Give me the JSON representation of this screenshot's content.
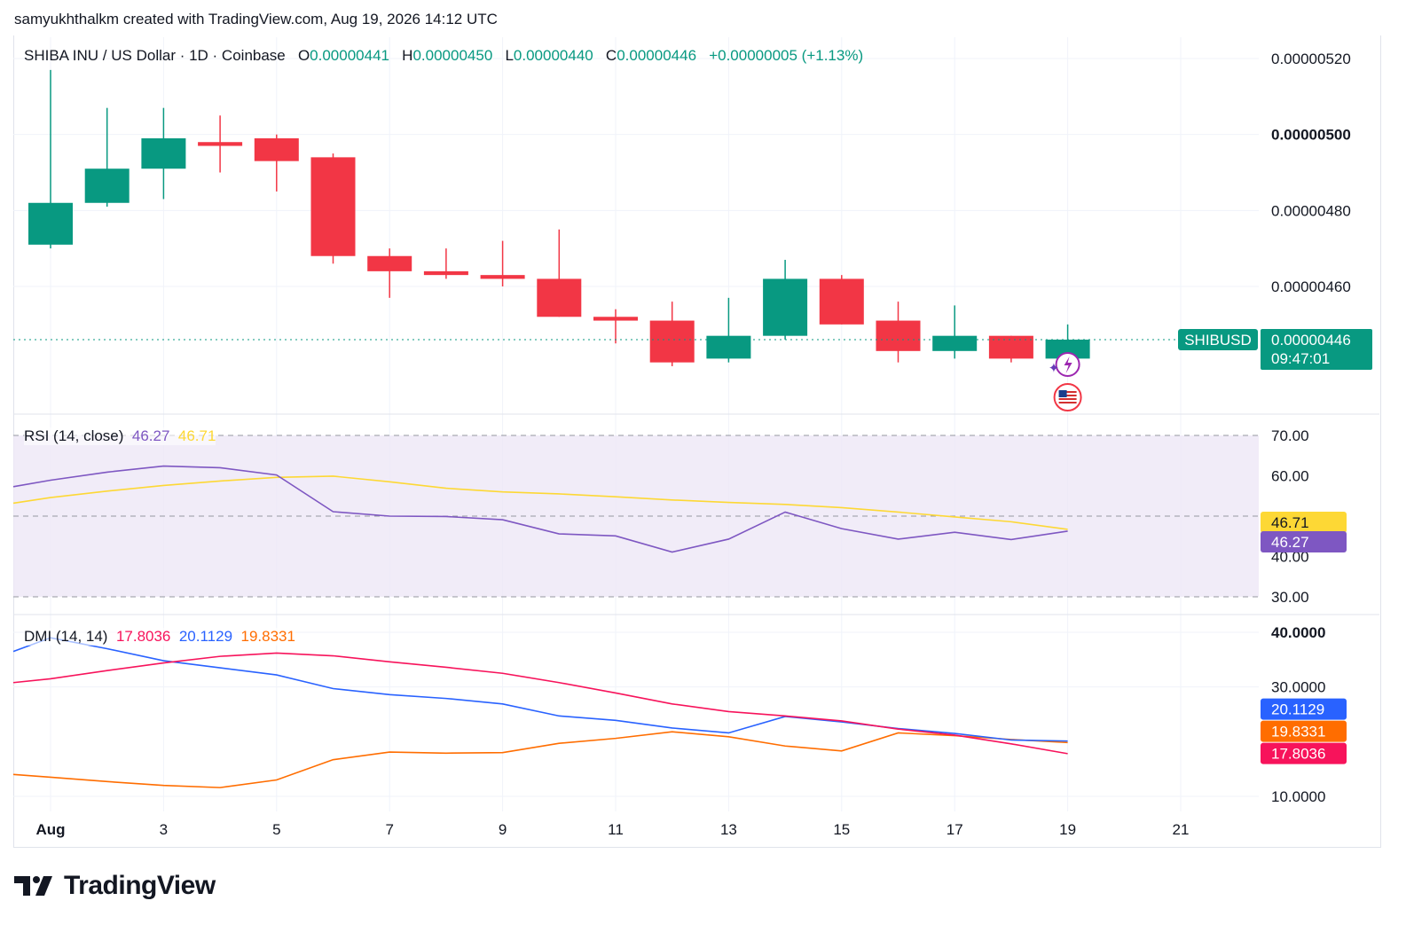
{
  "credit": "samyukhthalkm created with TradingView.com, Aug 19, 2026 14:12 UTC",
  "logo_text": "TradingView",
  "colors": {
    "up": "#089981",
    "down": "#f23645",
    "rsi": "#7e57c2",
    "rsi_ma": "#fdd835",
    "di_plus": "#2962ff",
    "di_minus": "#ff6d00",
    "adx": "#f7135b",
    "rsi_band": "#ede7f6"
  },
  "main_legend": {
    "symbol": "SHIBA INU / US Dollar · 1D · Coinbase",
    "o_label": "O",
    "o": "0.00000441",
    "h_label": "H",
    "h": "0.00000450",
    "l_label": "L",
    "l": "0.00000440",
    "c_label": "C",
    "c": "0.00000446",
    "change": "+0.00000005 (+1.13%)"
  },
  "rsi_legend": {
    "name": "RSI (14, close)",
    "value": "46.27",
    "ma": "46.71"
  },
  "dmi_legend": {
    "name": "DMI (14, 14)",
    "adx": "17.8036",
    "di_plus": "20.1129",
    "di_minus": "19.8331"
  },
  "price_tag": {
    "symbol": "SHIBUSD",
    "price": "0.00000446",
    "countdown": "09:47:01"
  },
  "chart_data": [
    {
      "type": "candlestick",
      "title": "SHIBA INU / US Dollar · 1D · Coinbase",
      "x": [
        "Aug 1",
        "Aug 2",
        "Aug 3",
        "Aug 4",
        "Aug 5",
        "Aug 6",
        "Aug 7",
        "Aug 8",
        "Aug 9",
        "Aug 10",
        "Aug 11",
        "Aug 12",
        "Aug 13",
        "Aug 14",
        "Aug 15",
        "Aug 16",
        "Aug 17",
        "Aug 18",
        "Aug 19"
      ],
      "open": [
        4.71,
        4.82,
        4.91,
        4.98,
        4.99,
        4.94,
        4.68,
        4.64,
        4.63,
        4.62,
        4.52,
        4.51,
        4.41,
        4.47,
        4.62,
        4.51,
        4.43,
        4.47,
        4.41
      ],
      "high": [
        5.17,
        5.07,
        5.07,
        5.05,
        5.0,
        4.95,
        4.7,
        4.7,
        4.72,
        4.75,
        4.54,
        4.56,
        4.57,
        4.67,
        4.63,
        4.56,
        4.55,
        4.47,
        4.5
      ],
      "low": [
        4.7,
        4.81,
        4.83,
        4.9,
        4.85,
        4.66,
        4.57,
        4.62,
        4.6,
        4.52,
        4.45,
        4.39,
        4.4,
        4.46,
        4.5,
        4.4,
        4.41,
        4.4,
        4.4
      ],
      "close": [
        4.82,
        4.91,
        4.99,
        4.97,
        4.93,
        4.68,
        4.64,
        4.63,
        4.62,
        4.52,
        4.51,
        4.4,
        4.47,
        4.62,
        4.5,
        4.43,
        4.47,
        4.41,
        4.46
      ],
      "value_scale": "1e-6 USD",
      "y_ticks": [
        "0.00000520",
        "0.00000500",
        "0.00000480",
        "0.00000460"
      ],
      "ylim": [
        4.36e-06,
        5.23e-06
      ],
      "x_ticks": [
        "Aug",
        "3",
        "5",
        "7",
        "9",
        "11",
        "13",
        "15",
        "17",
        "19",
        "21"
      ]
    },
    {
      "type": "line",
      "title": "RSI (14, close)",
      "series": [
        {
          "name": "RSI",
          "values": [
            58.9,
            60.9,
            62.4,
            62.0,
            60.2,
            51.1,
            50.0,
            49.9,
            49.1,
            45.6,
            45.1,
            41.1,
            44.3,
            51.0,
            46.9,
            44.3,
            46.0,
            44.2,
            46.27
          ]
        },
        {
          "name": "RSI-based MA",
          "values": [
            54.6,
            56.2,
            57.6,
            58.7,
            59.6,
            59.9,
            58.5,
            56.9,
            56.0,
            55.5,
            54.8,
            54.0,
            53.4,
            52.9,
            52.1,
            51.0,
            49.8,
            48.6,
            46.71
          ]
        }
      ],
      "lead_in": {
        "rsi": 57.3,
        "ma": 53.2
      },
      "y_ticks": [
        "70.00",
        "60.00",
        "40.00",
        "30.00"
      ],
      "band": [
        30,
        70
      ],
      "midline": 50,
      "ylim": [
        28,
        74
      ]
    },
    {
      "type": "line",
      "title": "DMI (14, 14)",
      "series": [
        {
          "name": "ADX",
          "values": [
            31.5,
            33.0,
            34.4,
            35.6,
            36.2,
            35.7,
            34.6,
            33.6,
            32.5,
            30.8,
            28.9,
            26.9,
            25.5,
            24.7,
            23.8,
            22.3,
            21.2,
            19.6,
            17.8036
          ]
        },
        {
          "name": "+DI",
          "values": [
            39.0,
            37.0,
            34.8,
            33.5,
            32.2,
            29.7,
            28.6,
            27.9,
            26.9,
            24.7,
            23.9,
            22.5,
            21.6,
            24.6,
            23.6,
            22.4,
            21.5,
            20.3,
            20.1129
          ]
        },
        {
          "name": "-DI",
          "values": [
            13.5,
            12.7,
            12.0,
            11.6,
            13.0,
            16.7,
            18.1,
            17.9,
            18.0,
            19.7,
            20.6,
            21.8,
            20.9,
            19.2,
            18.3,
            21.6,
            21.1,
            20.4,
            19.8331
          ]
        }
      ],
      "lead_in": {
        "adx": 30.8,
        "di_plus": 36.5,
        "di_minus": 14.0
      },
      "y_ticks": [
        "40.0000",
        "30.0000",
        "10.0000"
      ],
      "ylim": [
        8,
        42
      ]
    }
  ]
}
